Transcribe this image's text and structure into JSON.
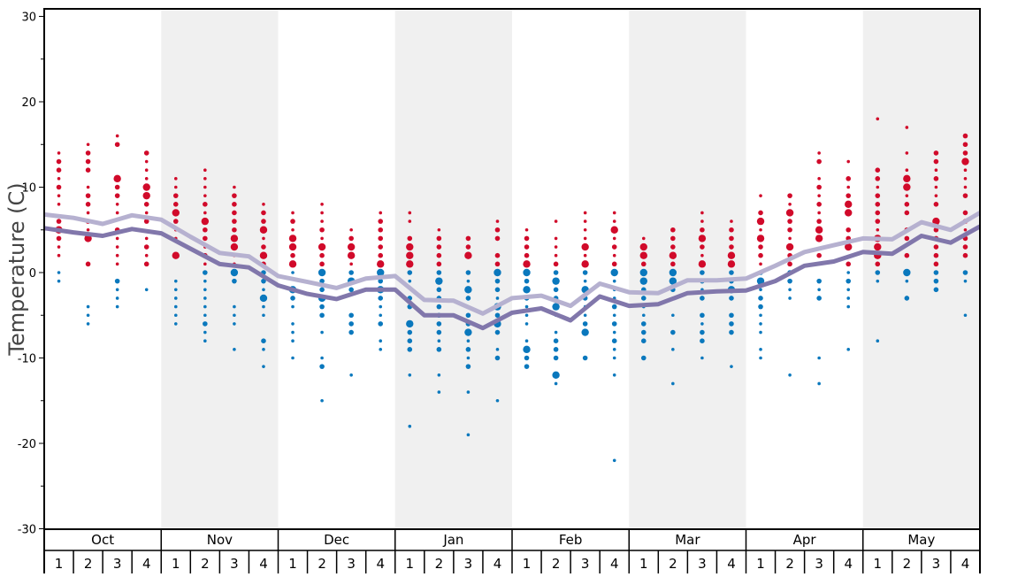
{
  "chart_data": {
    "type": "scatter",
    "title": "",
    "ylabel": "Temperature (C)",
    "xlabel": "",
    "ylim": [
      -30,
      30
    ],
    "yticks": [
      "30",
      "20",
      "10",
      "0",
      "-10",
      "-20",
      "-30"
    ],
    "months": [
      "Oct",
      "Nov",
      "Dec",
      "Jan",
      "Feb",
      "Mar",
      "Apr",
      "May"
    ],
    "week_labels": [
      "1",
      "2",
      "3",
      "4"
    ],
    "colors": {
      "highs": "#d10a2a",
      "lows": "#0a78bd",
      "line_light": "#b6b1d0",
      "line_dark": "#8177ab",
      "band": "#f0f0f0"
    },
    "series_lines": [
      {
        "name": "light-line",
        "values": [
          6.8,
          6.4,
          5.7,
          6.7,
          6.2,
          4.2,
          2.3,
          1.9,
          -0.4,
          -1.1,
          -1.8,
          -0.7,
          -0.4,
          -3.2,
          -3.3,
          -4.8,
          -3.0,
          -2.7,
          -3.9,
          -1.3,
          -2.3,
          -2.4,
          -0.9,
          -0.9,
          -0.7,
          0.8,
          2.4,
          3.2,
          4.0,
          3.9,
          5.9,
          5.0,
          7.0
        ]
      },
      {
        "name": "dark-line",
        "values": [
          5.2,
          4.7,
          4.3,
          5.1,
          4.6,
          2.8,
          1.0,
          0.6,
          -1.5,
          -2.5,
          -3.1,
          -2.0,
          -2.0,
          -5.0,
          -5.0,
          -6.5,
          -4.7,
          -4.2,
          -5.6,
          -2.8,
          -3.9,
          -3.7,
          -2.4,
          -2.2,
          -2.1,
          -1.0,
          0.8,
          1.3,
          2.4,
          2.2,
          4.3,
          3.5,
          5.4
        ]
      }
    ],
    "weeks": [
      {
        "highs": "14:1,13:2,12:2,11:1,10:2,9:1,8:1,6:2,5:3,4:2,3:1,2:1",
        "lows": "0:1,-1:1"
      },
      {
        "highs": "15:1,14:2,13:2,12:2,10:1,9:2,8:2,7:1,6:2,5:1,4:3,1:2",
        "lows": "-4:1,-5:1,-6:1"
      },
      {
        "highs": "16:1,15:2,11:3,10:2,9:2,8:1,7:1,5:2,4:1,3:1,2:1,1:1",
        "lows": "-1:2,-2:1,-3:1,-4:1"
      },
      {
        "highs": "14:2,13:1,12:1,11:1,10:3,9:3,8:2,7:1,6:2,4:1,3:2,2:1,1:2",
        "lows": "-2:1"
      },
      {
        "highs": "11:1,10:1,9:2,8:2,7:3,6:2,5:1,4:1,2:3",
        "lows": "-1:1,-2:1,-3:1,-4:1,-5:1,-6:1"
      },
      {
        "highs": "12:1,11:1,10:1,9:1,8:2,7:1,6:3,5:2,4:2,3:1,2:2,1:1",
        "lows": "0:2,-1:1,-2:1,-3:1,-4:1,-5:1,-6:2,-7:1,-8:1"
      },
      {
        "highs": "10:1,9:2,8:2,7:2,6:2,5:2,4:3,3:3,2:1,1:1",
        "lows": "0:3,-1:2,-4:1,-5:1,-6:1,-9:1"
      },
      {
        "highs": "8:1,7:2,6:2,5:3,4:1,3:2,2:3,1:2",
        "lows": "0:2,-1:2,-2:1,-3:3,-4:1,-5:1,-8:2,-9:1,-11:1"
      },
      {
        "highs": "7:1,6:2,5:1,4:3,3:3,2:2,1:3",
        "lows": "0:1,-2:3,-3:2,-4:1,-6:1,-7:1,-8:1,-10:1"
      },
      {
        "highs": "8:1,7:1,6:1,5:2,4:1,3:3,2:2,1:2",
        "lows": "0:3,-1:2,-2:2,-3:3,-4:2,-5:2,-7:1,-10:1,-11:2,-15:1"
      },
      {
        "highs": "5:1,4:2,3:3,2:3,1:1",
        "lows": "0:2,-1:3,-2:2,-5:2,-6:2,-7:2,-12:1"
      },
      {
        "highs": "7:1,6:2,5:2,4:2,3:2,2:2,1:3",
        "lows": "0:3,-1:2,-2:3,-3:2,-4:1,-5:1,-6:2,-8:1,-9:1"
      },
      {
        "highs": "7:1,6:1,4:2,3:3,2:3,1:3",
        "lows": "0:2,-1:1,-3:2,-4:2,-6:3,-7:2,-8:2,-9:2,-12:1,-18:1"
      },
      {
        "highs": "5:1,4:2,3:2,2:2,1:2",
        "lows": "0:2,-1:3,-2:2,-3:2,-4:2,-5:2,-6:2,-7:2,-8:1,-9:2,-12:1,-14:1"
      },
      {
        "highs": "4:2,3:2,2:3",
        "lows": "0:2,-1:1,-2:3,-3:2,-5:2,-6:2,-7:3,-8:1,-9:2,-10:1,-11:2,-14:1,-19:1"
      },
      {
        "highs": "6:1,5:2,4:2,2:2,1:2",
        "lows": "0:3,-1:2,-2:2,-3:1,-4:3,-5:2,-6:3,-7:2,-9:1,-10:2,-15:1"
      },
      {
        "highs": "5:1,4:2,3:2,2:2,1:3",
        "lows": "0:3,-1:2,-2:3,-3:2,-4:1,-5:1,-6:1,-8:1,-9:3,-10:2,-11:2"
      },
      {
        "highs": "6:1,4:1,3:1,2:1,1:2",
        "lows": "0:2,-1:3,-2:2,-3:2,-4:3,-5:1,-7:1,-8:2,-9:2,-10:2,-12:3,-13:1"
      },
      {
        "highs": "7:1,6:1,5:1,4:1,3:3,2:1,1:3",
        "lows": "0:2,-1:1,-2:3,-3:2,-4:1,-5:1,-6:2,-7:3,-10:2"
      },
      {
        "highs": "7:1,6:1,5:3,4:1,3:2,2:1,1:2",
        "lows": "0:3,-1:1,-2:1,-3:1,-4:2,-5:1,-6:2,-7:1,-8:2,-9:1,-10:1,-12:1,-22:1"
      },
      {
        "highs": "4:1,3:3,2:3,1:2",
        "lows": "0:3,-1:3,-2:2,-3:2,-4:1,-5:1,-6:2,-7:2,-8:2,-10:2"
      },
      {
        "highs": "5:2,4:2,3:2,2:3,1:2",
        "lows": "0:3,-1:3,-2:2,-3:1,-5:1,-7:2,-9:1,-13:1"
      },
      {
        "highs": "7:1,6:1,5:2,4:3,3:2,2:1,1:3",
        "lows": "0:2,-1:2,-2:1,-3:2,-5:2,-6:1,-7:2,-8:2,-10:1"
      },
      {
        "highs": "6:1,5:2,4:2,3:2,2:3,1:3",
        "lows": "0:2,-1:2,-2:3,-3:2,-5:2,-6:2,-7:2,-11:1"
      },
      {
        "highs": "9:1,7:2,6:3,5:1,4:3,3:2,2:2,1:1",
        "lows": "0:2,-1:3,-2:1,-3:2,-4:2,-5:1,-6:1,-7:1,-9:1,-10:1"
      },
      {
        "highs": "9:2,8:1,7:3,6:2,5:2,4:1,3:3,2:2,1:2",
        "lows": "0:2,-1:2,-2:1,-3:1,-12:1"
      },
      {
        "highs": "14:1,13:2,11:1,10:2,9:1,8:2,7:1,6:2,5:3,4:3,2:2,1:1",
        "lows": "-1:2,-2:1,-3:2,-10:1,-13:1"
      },
      {
        "highs": "13:1,11:2,10:1,9:2,8:3,7:3,5:2,4:2,3:3,1:2",
        "lows": "0:1,-1:2,-2:1,-3:1,-4:1,-9:1"
      },
      {
        "highs": "18:1,12:2,11:2,10:1,9:2,8:2,7:2,6:2,5:1,4:3,3:3,2:3,1:2",
        "lows": "0:2,-1:1,-8:1"
      },
      {
        "highs": "17:1,14:1,12:1,11:3,10:3,9:1,8:2,7:2,5:2,4:2,2:2",
        "lows": "0:3,-1:1,-3:2"
      },
      {
        "highs": "14:2,13:2,12:1,11:2,10:1,9:1,8:2,6:3,5:2,4:2,3:2,2:2,1:2",
        "lows": "0:2,-1:2,-2:2"
      },
      {
        "highs": "16:2,15:2,14:2,13:3,12:1,11:1,10:1,9:2,7:2,6:2,5:1,4:2,3:2,2:2",
        "lows": "0:2,-1:1,-5:1"
      }
    ]
  }
}
